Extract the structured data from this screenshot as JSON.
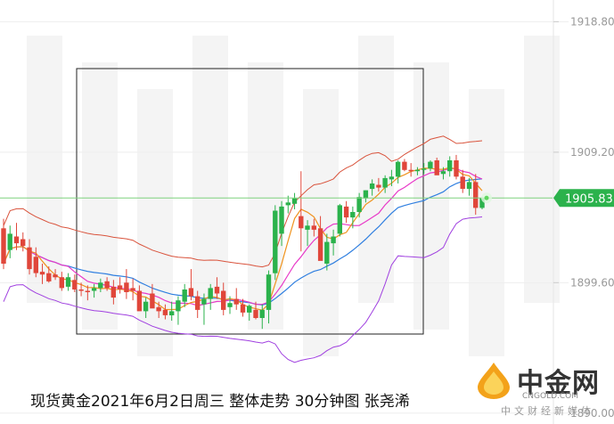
{
  "chart_data": {
    "type": "candlestick",
    "title": "现货黄金2021年6月2日周三 整体走势 30分钟图 张尧浠",
    "y_ticks": [
      "1918.80",
      "1909.20",
      "1899.60",
      "1890.00"
    ],
    "y_tick_values": [
      1918.8,
      1909.2,
      1899.6,
      1890.0
    ],
    "ylim": [
      1889.2,
      1920.4
    ],
    "current_price": "1905.83",
    "current_price_value": 1905.83,
    "colors": {
      "up": "#2bb24c",
      "down": "#e0463a",
      "upper_band": "#d9533c",
      "lower_band": "#a040e0",
      "ma_fast": "#f0931e",
      "ma_mid": "#e83ac8",
      "ma_slow": "#2f7fe0",
      "price_line": "#7fd27f"
    },
    "candles": [
      [
        1903.6,
        1904.3,
        1900.6,
        1901.0
      ],
      [
        1902.0,
        1903.8,
        1901.4,
        1903.2
      ],
      [
        1903.0,
        1904.0,
        1902.0,
        1902.5
      ],
      [
        1902.8,
        1903.3,
        1901.9,
        1902.3
      ],
      [
        1902.2,
        1902.8,
        1900.2,
        1900.6
      ],
      [
        1901.5,
        1902.2,
        1900.0,
        1900.3
      ],
      [
        1900.4,
        1901.0,
        1899.5,
        1900.2
      ],
      [
        1900.3,
        1900.8,
        1899.6,
        1899.7
      ],
      [
        1900.2,
        1900.6,
        1899.8,
        1900.0
      ],
      [
        1900.0,
        1900.4,
        1899.0,
        1899.2
      ],
      [
        1899.3,
        1900.3,
        1899.0,
        1900.0
      ],
      [
        1899.8,
        1900.2,
        1898.9,
        1899.1
      ],
      [
        1899.1,
        1899.6,
        1898.6,
        1899.0
      ],
      [
        1899.0,
        1899.4,
        1898.3,
        1898.9
      ],
      [
        1899.0,
        1899.5,
        1898.5,
        1899.2
      ],
      [
        1899.2,
        1899.9,
        1898.9,
        1899.6
      ],
      [
        1899.7,
        1900.0,
        1899.0,
        1899.2
      ],
      [
        1899.3,
        1899.8,
        1898.0,
        1898.5
      ],
      [
        1899.4,
        1900.0,
        1898.8,
        1899.1
      ],
      [
        1899.6,
        1900.6,
        1898.4,
        1898.9
      ],
      [
        1899.2,
        1899.9,
        1898.3,
        1899.0
      ],
      [
        1899.0,
        1899.4,
        1897.6,
        1897.5
      ],
      [
        1897.5,
        1898.5,
        1897.0,
        1898.2
      ],
      [
        1898.8,
        1899.5,
        1897.8,
        1897.7
      ],
      [
        1897.8,
        1898.2,
        1897.0,
        1897.5
      ],
      [
        1897.6,
        1898.0,
        1896.9,
        1897.2
      ],
      [
        1897.2,
        1898.2,
        1896.8,
        1897.5
      ],
      [
        1897.5,
        1898.6,
        1896.5,
        1898.3
      ],
      [
        1898.2,
        1899.5,
        1897.8,
        1899.1
      ],
      [
        1899.2,
        1900.6,
        1898.3,
        1898.6
      ],
      [
        1898.6,
        1899.0,
        1897.0,
        1897.6
      ],
      [
        1898.0,
        1898.8,
        1896.5,
        1898.4
      ],
      [
        1898.4,
        1899.5,
        1897.6,
        1899.2
      ],
      [
        1899.3,
        1900.0,
        1898.4,
        1898.8
      ],
      [
        1899.0,
        1899.6,
        1897.2,
        1897.6
      ],
      [
        1897.8,
        1898.6,
        1897.3,
        1898.1
      ],
      [
        1898.4,
        1899.2,
        1897.6,
        1898.0
      ],
      [
        1898.0,
        1898.4,
        1897.1,
        1897.4
      ],
      [
        1897.4,
        1898.0,
        1896.8,
        1897.9
      ],
      [
        1897.6,
        1898.2,
        1896.9,
        1897.0
      ],
      [
        1897.0,
        1898.0,
        1896.2,
        1897.6
      ],
      [
        1897.6,
        1900.5,
        1896.6,
        1900.2
      ],
      [
        1900.3,
        1905.3,
        1899.8,
        1904.9
      ],
      [
        1903.2,
        1905.6,
        1902.3,
        1905.2
      ],
      [
        1905.3,
        1906.0,
        1904.7,
        1905.5
      ],
      [
        1905.4,
        1906.2,
        1905.0,
        1905.8
      ],
      [
        1904.5,
        1907.8,
        1901.9,
        1903.6
      ],
      [
        1903.5,
        1904.2,
        1902.3,
        1903.8
      ],
      [
        1903.8,
        1904.3,
        1903.0,
        1903.5
      ],
      [
        1903.6,
        1904.5,
        1901.3,
        1901.2
      ],
      [
        1901.0,
        1903.2,
        1900.5,
        1902.6
      ],
      [
        1902.5,
        1903.5,
        1901.6,
        1903.0
      ],
      [
        1903.2,
        1905.4,
        1903.0,
        1905.3
      ],
      [
        1905.2,
        1905.6,
        1904.0,
        1904.4
      ],
      [
        1904.4,
        1905.2,
        1903.6,
        1904.8
      ],
      [
        1904.8,
        1906.2,
        1904.4,
        1905.9
      ],
      [
        1905.8,
        1906.4,
        1905.5,
        1906.4
      ],
      [
        1906.5,
        1907.2,
        1906.0,
        1906.9
      ],
      [
        1906.8,
        1907.3,
        1906.3,
        1906.6
      ],
      [
        1906.6,
        1907.5,
        1906.2,
        1907.3
      ],
      [
        1907.2,
        1907.9,
        1906.7,
        1907.4
      ],
      [
        1907.4,
        1908.6,
        1906.9,
        1908.5
      ],
      [
        1908.5,
        1908.7,
        1907.8,
        1907.9
      ],
      [
        1907.9,
        1908.4,
        1907.4,
        1907.8
      ],
      [
        1907.8,
        1908.1,
        1907.5,
        1907.9
      ],
      [
        1907.9,
        1908.4,
        1907.6,
        1908.0
      ],
      [
        1908.0,
        1908.6,
        1907.8,
        1908.5
      ],
      [
        1908.6,
        1908.8,
        1907.6,
        1907.5
      ],
      [
        1907.6,
        1908.1,
        1907.2,
        1907.8
      ],
      [
        1907.8,
        1908.9,
        1907.4,
        1908.6
      ],
      [
        1908.6,
        1909.0,
        1907.2,
        1907.4
      ],
      [
        1907.4,
        1907.9,
        1906.2,
        1906.5
      ],
      [
        1906.5,
        1907.3,
        1906.0,
        1907.0
      ],
      [
        1907.0,
        1907.6,
        1904.6,
        1905.1
      ],
      [
        1905.1,
        1905.9,
        1905.0,
        1905.83
      ]
    ]
  },
  "logo": {
    "name": "中金网",
    "domain": "CNGOLD.COM",
    "tagline": "中文财经新媒体"
  }
}
